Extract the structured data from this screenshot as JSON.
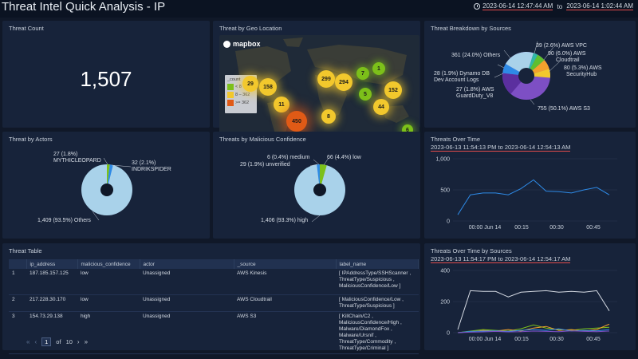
{
  "header": {
    "title": "Threat Intel Quick Analysis - IP",
    "time_from": "2023-06-14 12:47:44 AM",
    "time_sep": " to ",
    "time_to": "2023-06-14 1:02:44 AM"
  },
  "threat_count": {
    "title": "Threat Count",
    "value": "1,507"
  },
  "geo": {
    "title": "Threat by Geo Location",
    "brand": "mapbox",
    "legend_title": "_count",
    "legend": [
      "< 8",
      "8 – 362",
      ">= 362"
    ],
    "legend_colors": [
      "#7cc01a",
      "#f2c82d",
      "#e05a16"
    ],
    "bubbles": [
      {
        "label": "29",
        "color": "#f2c82d"
      },
      {
        "label": "158",
        "color": "#f2c82d"
      },
      {
        "label": "11",
        "color": "#f2c82d"
      },
      {
        "label": "450",
        "color": "#e05a16"
      },
      {
        "label": "299",
        "color": "#f2c82d"
      },
      {
        "label": "294",
        "color": "#f2c82d"
      },
      {
        "label": "8",
        "color": "#f2c82d"
      },
      {
        "label": "7",
        "color": "#7cc01a"
      },
      {
        "label": "1",
        "color": "#7cc01a"
      },
      {
        "label": "5",
        "color": "#7cc01a"
      },
      {
        "label": "152",
        "color": "#f2c82d"
      },
      {
        "label": "44",
        "color": "#f2c82d"
      },
      {
        "label": "6",
        "color": "#7cc01a"
      }
    ]
  },
  "sources": {
    "title": "Threat Breakdown by Sources",
    "labels": {
      "vpc": "39 (2.6%) AWS VPC",
      "cloudtrail_a": "90 (6.0%) AWS",
      "cloudtrail_b": "Cloudtrail",
      "securityhub_a": "80 (5.3%) AWS",
      "securityhub_b": "SecurityHub",
      "s3": "755 (50.1%) AWS S3",
      "guardduty_a": "27 (1.8%) AWS",
      "guardduty_b": "GuardDuty_V8",
      "dynamo_a": "28 (1.9%) Dynamo DB",
      "dynamo_b": "Dev Account Logs",
      "others": "361 (24.0%) Others"
    }
  },
  "actors": {
    "title": "Threat by Actors",
    "labels": {
      "mythic_a": "27 (1.8%)",
      "mythic_b": "MYTHICLEOPARD",
      "indrik_a": "32 (2.1%)",
      "indrik_b": "INDRIKSPIDER",
      "others": "1,409 (93.5%) Others"
    }
  },
  "confidence": {
    "title": "Threats by Malicious Confidence",
    "labels": {
      "medium": "6 (0.4%) medium",
      "low": "66 (4.4%) low",
      "unverified": "29 (1.9%) unverified",
      "high": "1,406 (93.3%) high"
    }
  },
  "table": {
    "title": "Threat Table",
    "columns": [
      "ip_address",
      "malicious_confidence",
      "actor",
      "_source",
      "label_name"
    ],
    "rows": [
      {
        "n": "1",
        "ip": "187.185.157.125",
        "conf": "low",
        "actor": "Unassigned",
        "source": "AWS Kinesis",
        "label": "[ IPAddressType/SSHScanner , ThreatType/Suspicious , MaliciousConfidence/Low ]"
      },
      {
        "n": "2",
        "ip": "217.228.30.170",
        "conf": "low",
        "actor": "Unassigned",
        "source": "AWS Cloudtrail",
        "label": "[ MaliciousConfidence/Low , ThreatType/Suspicious ]"
      },
      {
        "n": "3",
        "ip": "154.73.29.138",
        "conf": "high",
        "actor": "Unassigned",
        "source": "AWS S3",
        "label": "[ KillChain/C2 , MaliciousConfidence/High , Malware/DiamondFox , Malware/Ursnif , ThreatType/Commodity , ThreatType/Criminal ]"
      }
    ],
    "pager": {
      "page": "1",
      "of": "of",
      "total": "10"
    }
  },
  "over_time": {
    "title": "Threats Over Time",
    "range": "2023-06-13 11:54:13 PM to 2023-06-14 12:54:13 AM",
    "chart_data": {
      "type": "line",
      "yticks": [
        "1,000",
        "500",
        "0"
      ],
      "xticks": [
        "00:00 Jun 14",
        "00:15",
        "00:30",
        "00:45"
      ],
      "ylim": [
        0,
        1000
      ],
      "series": [
        {
          "values": [
            100,
            420,
            450,
            450,
            420,
            520,
            660,
            480,
            470,
            450,
            500,
            540,
            420
          ]
        }
      ],
      "color": "#2e8ae6"
    }
  },
  "by_sources": {
    "title": "Threats Over Time by Sources",
    "range": "2023-06-13 11:54:17 PM to 2023-06-14 12:54:17 AM",
    "chart_data": {
      "type": "line",
      "yticks": [
        "400",
        "200",
        "0"
      ],
      "xticks": [
        "00:00 Jun 14",
        "00:15",
        "00:30",
        "00:45"
      ],
      "ylim": [
        0,
        400
      ],
      "series": [
        {
          "values": [
            20,
            270,
            265,
            265,
            230,
            260,
            265,
            270,
            260,
            265,
            260,
            270,
            140
          ],
          "color": "#d6dbe4"
        },
        {
          "values": [
            0,
            10,
            20,
            15,
            10,
            25,
            50,
            30,
            20,
            15,
            25,
            30,
            35
          ],
          "color": "#7cc01a"
        },
        {
          "values": [
            0,
            5,
            15,
            10,
            20,
            10,
            30,
            40,
            15,
            20,
            10,
            20,
            55
          ],
          "color": "#f2a12d"
        },
        {
          "values": [
            0,
            8,
            10,
            12,
            8,
            15,
            20,
            15,
            25,
            10,
            15,
            12,
            20
          ],
          "color": "#2e8ae6"
        },
        {
          "values": [
            0,
            3,
            5,
            8,
            5,
            6,
            10,
            8,
            6,
            12,
            8,
            6,
            10
          ],
          "color": "#7d4fc4"
        }
      ]
    }
  }
}
